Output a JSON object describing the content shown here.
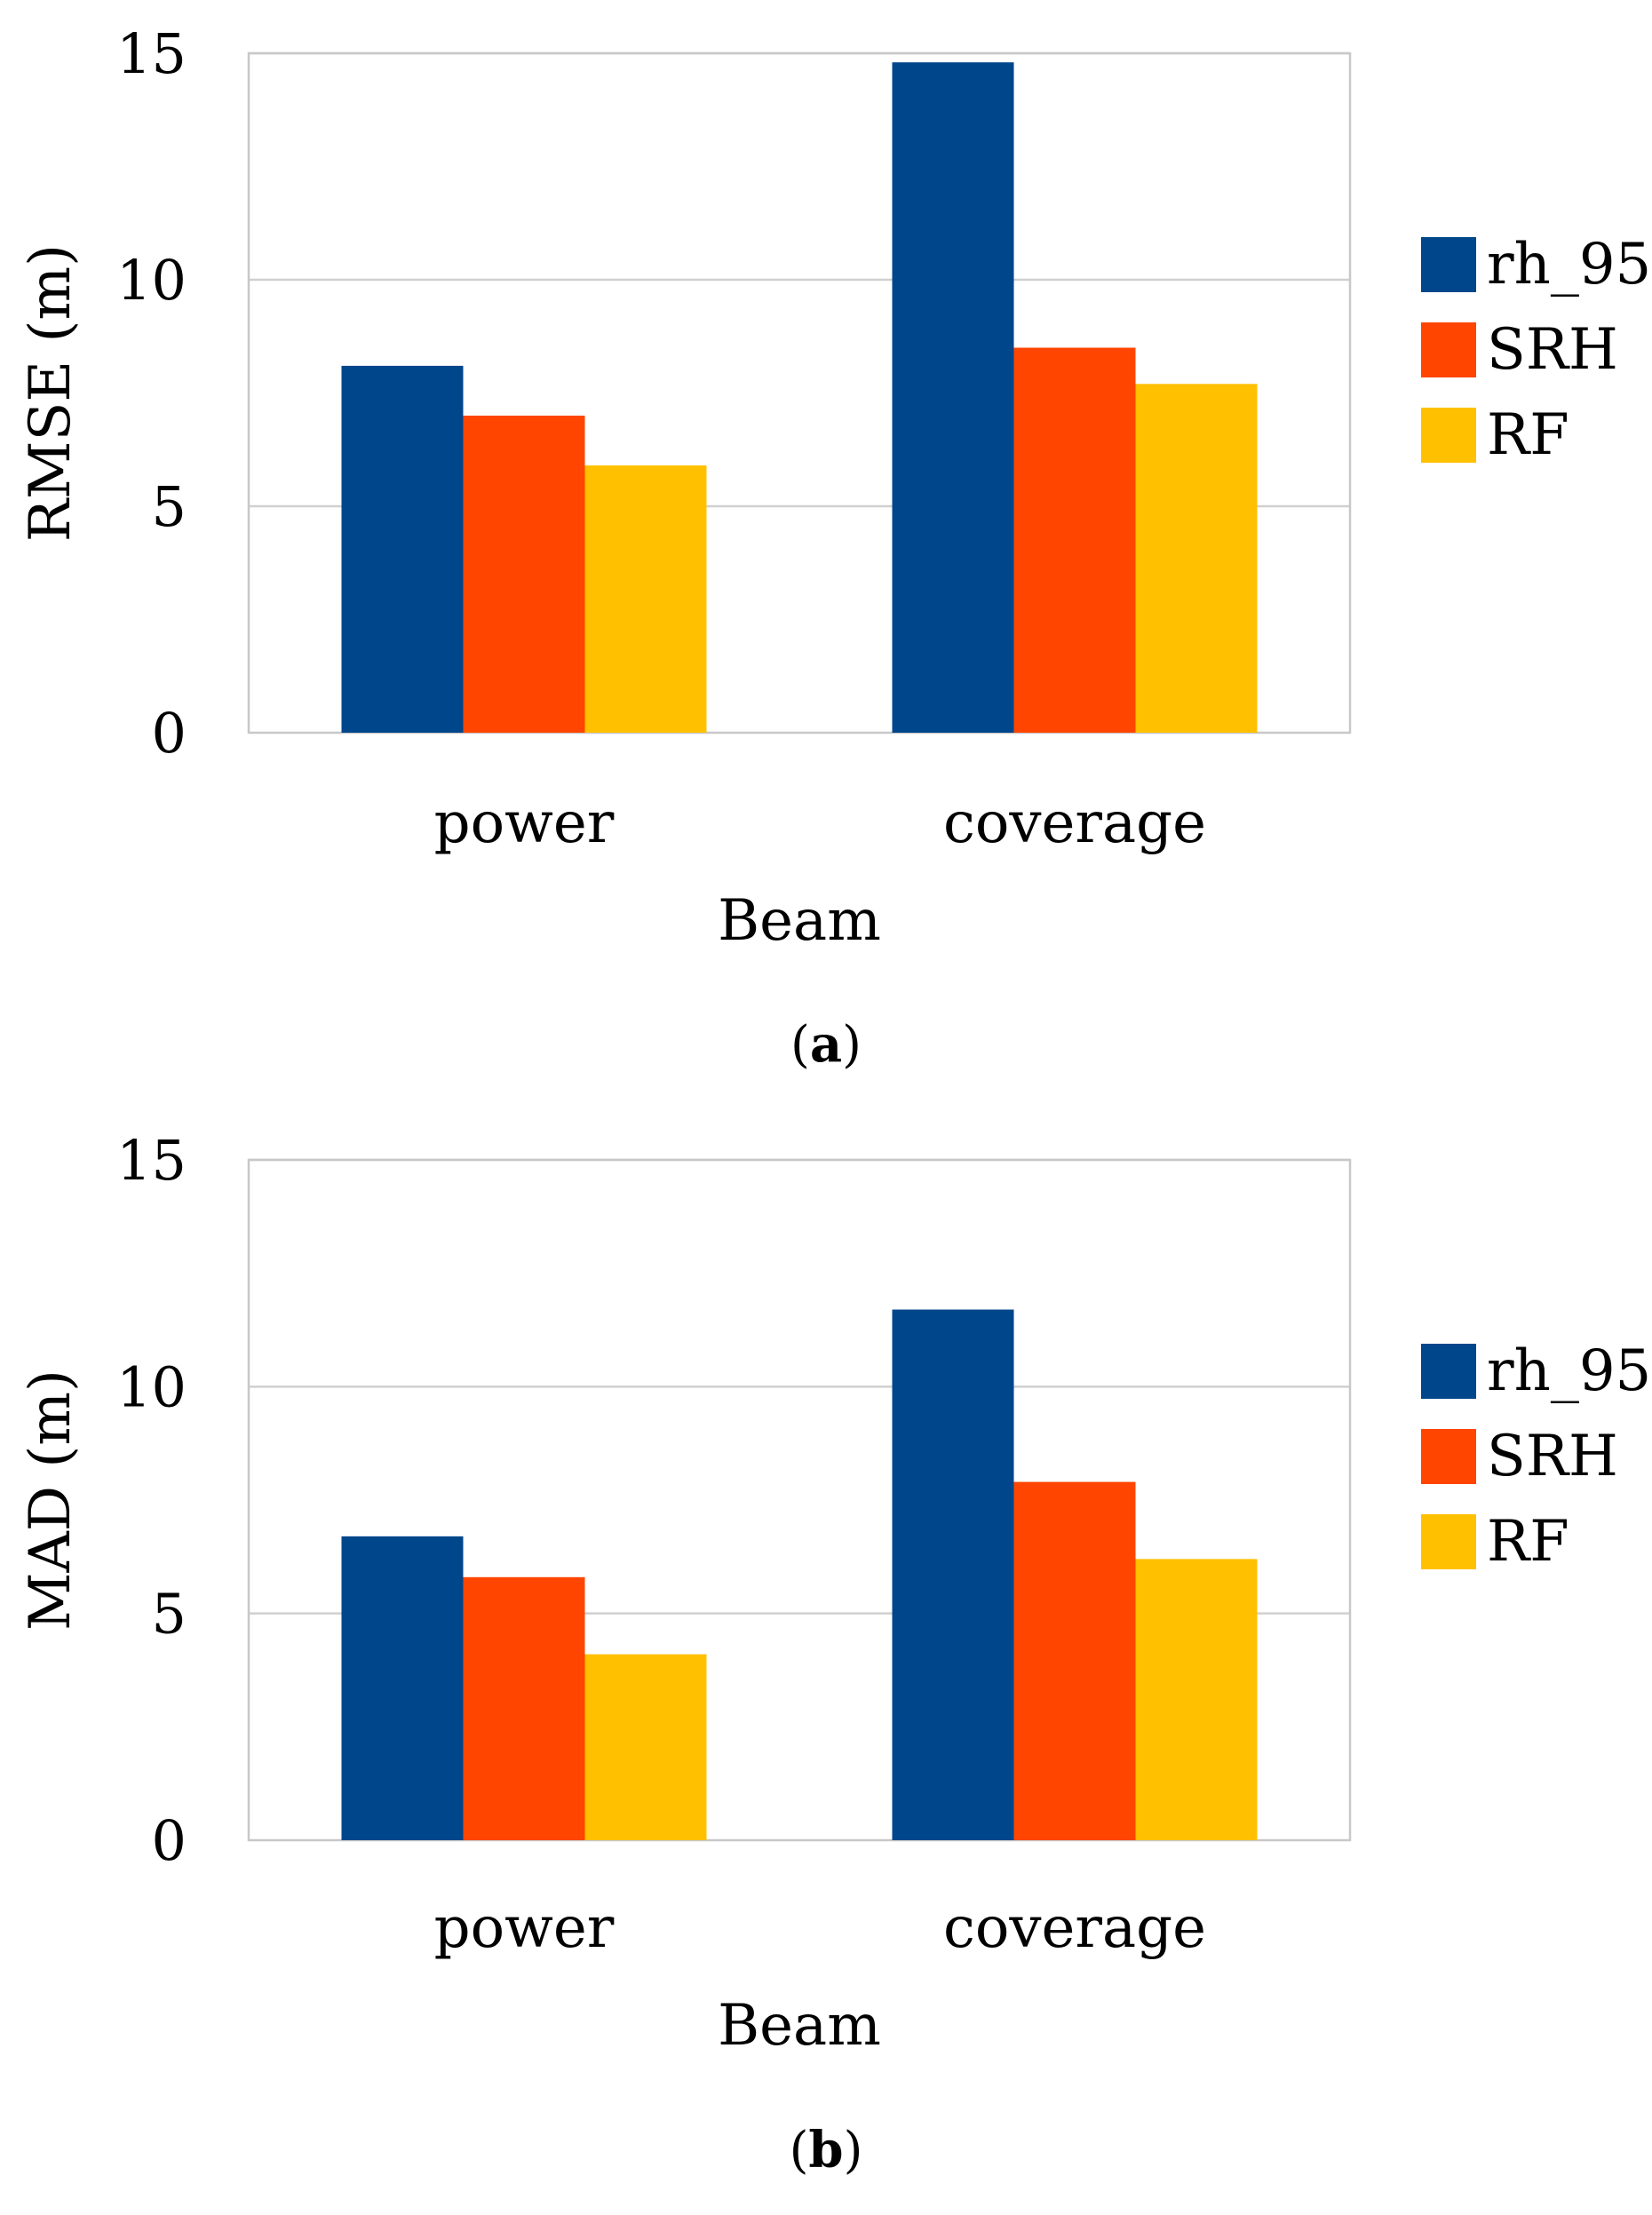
{
  "chart_data": [
    {
      "type": "bar",
      "panel_label": "a",
      "categories": [
        "power",
        "coverage"
      ],
      "series": [
        {
          "name": "rh_95",
          "color": "#00468b",
          "values": [
            8.1,
            14.8
          ]
        },
        {
          "name": "SRH",
          "color": "#ff4500",
          "values": [
            7.0,
            8.5
          ]
        },
        {
          "name": "RF",
          "color": "#ffc000",
          "values": [
            5.9,
            7.7
          ]
        }
      ],
      "xlabel": "Beam",
      "ylabel": "RMSE (m)",
      "ylim": [
        0,
        15
      ],
      "yticks": [
        "0",
        "5",
        "10",
        "15"
      ],
      "grid": true,
      "legend": "right"
    },
    {
      "type": "bar",
      "panel_label": "b",
      "categories": [
        "power",
        "coverage"
      ],
      "series": [
        {
          "name": "rh_95",
          "color": "#00468b",
          "values": [
            6.7,
            11.7
          ]
        },
        {
          "name": "SRH",
          "color": "#ff4500",
          "values": [
            5.8,
            7.9
          ]
        },
        {
          "name": "RF",
          "color": "#ffc000",
          "values": [
            4.1,
            6.2
          ]
        }
      ],
      "xlabel": "Beam",
      "ylabel": "MAD (m)",
      "ylim": [
        0,
        15
      ],
      "yticks": [
        "0",
        "5",
        "10",
        "15"
      ],
      "grid": true,
      "legend": "right"
    }
  ]
}
